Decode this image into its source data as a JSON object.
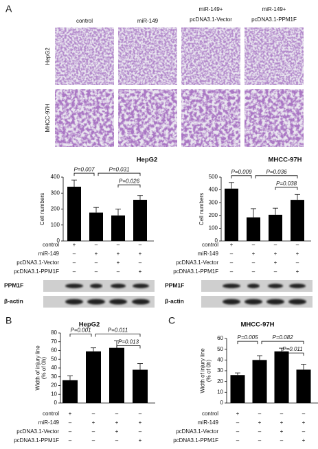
{
  "panel_a": {
    "label": "A",
    "columns": [
      [
        "control"
      ],
      [
        "miR-149"
      ],
      [
        "miR-149+",
        "pcDNA3.1-Vector"
      ],
      [
        "miR-149+",
        "pcDNA3.1-PPM1F"
      ]
    ],
    "rows": [
      "HepG2",
      "MHCC-97H"
    ]
  },
  "blots": [
    {
      "labels": [
        "PPM1F",
        "β-actin"
      ]
    },
    {
      "labels": [
        "PPM1F",
        "β-actin"
      ]
    }
  ],
  "chart_data": [
    {
      "type": "bar",
      "title": "HepG2",
      "y_label": "Cell numbers",
      "color": "#000000",
      "ylim": [
        0,
        400
      ],
      "yticks": [
        0,
        100,
        200,
        300,
        400
      ],
      "values": [
        340,
        178,
        160,
        258
      ],
      "errors": [
        42,
        32,
        40,
        27
      ],
      "annotations": [
        {
          "label": "P=0.007"
        },
        {
          "label": "P=0.031"
        },
        {
          "label": "P=0.026"
        }
      ],
      "conditions": [
        {
          "name": "control",
          "signs": [
            "+",
            "–",
            "–",
            "–"
          ]
        },
        {
          "name": "miR-149",
          "signs": [
            "–",
            "+",
            "+",
            "+"
          ]
        },
        {
          "name": "pcDNA3.1-Vector",
          "signs": [
            "–",
            "–",
            "+",
            "–"
          ]
        },
        {
          "name": "pcDNA3.1-PPM1F",
          "signs": [
            "–",
            "–",
            "–",
            "+"
          ]
        }
      ]
    },
    {
      "type": "bar",
      "title": "MHCC-97H",
      "y_label": "Cell numbers",
      "color": "#000000",
      "ylim": [
        0,
        500
      ],
      "yticks": [
        0,
        100,
        200,
        300,
        400,
        500
      ],
      "values": [
        410,
        185,
        205,
        322
      ],
      "errors": [
        48,
        68,
        52,
        42
      ],
      "annotations": [
        {
          "label": "P=0.009"
        },
        {
          "label": "P=0.036"
        },
        {
          "label": "P=0.038"
        }
      ],
      "conditions": [
        {
          "name": "control",
          "signs": [
            "+",
            "–",
            "–",
            "–"
          ]
        },
        {
          "name": "miR-149",
          "signs": [
            "–",
            "+",
            "+",
            "+"
          ]
        },
        {
          "name": "pcDNA3.1-Vector",
          "signs": [
            "–",
            "–",
            "+",
            "–"
          ]
        },
        {
          "name": "pcDNA3.1-PPM1F",
          "signs": [
            "–",
            "–",
            "–",
            "+"
          ]
        }
      ]
    },
    {
      "type": "bar",
      "panel": "B",
      "title": "HepG2",
      "y_label": [
        "Width of injury line",
        "(% of 0h)"
      ],
      "color": "#000000",
      "ylim": [
        0,
        80
      ],
      "yticks": [
        0,
        10,
        20,
        30,
        40,
        50,
        60,
        70,
        80
      ],
      "values": [
        26,
        59,
        63,
        38
      ],
      "errors": [
        5,
        4,
        8,
        7
      ],
      "annotations": [
        {
          "label": "P=0.001"
        },
        {
          "label": "P=0.011"
        },
        {
          "label": "P=0.013"
        }
      ],
      "conditions": [
        {
          "name": "control",
          "signs": [
            "+",
            "–",
            "–",
            "–"
          ]
        },
        {
          "name": "miR-149",
          "signs": [
            "–",
            "+",
            "+",
            "+"
          ]
        },
        {
          "name": "pcDNA3.1-Vector",
          "signs": [
            "–",
            "–",
            "+",
            "–"
          ]
        },
        {
          "name": "pcDNA3.1-PPM1F",
          "signs": [
            "–",
            "–",
            "–",
            "+"
          ]
        }
      ]
    },
    {
      "type": "bar",
      "panel": "C",
      "title": "MHCC-97H",
      "y_label": [
        "Width of injury line",
        "(% of 0h)"
      ],
      "color": "#000000",
      "ylim": [
        0,
        60
      ],
      "yticks": [
        0,
        10,
        20,
        30,
        40,
        50,
        60
      ],
      "values": [
        26,
        40,
        48,
        31
      ],
      "errors": [
        2,
        4,
        3,
        5
      ],
      "annotations": [
        {
          "label": "P=0.005"
        },
        {
          "label": "P=0.082"
        },
        {
          "label": "P=0.011"
        }
      ],
      "conditions": [
        {
          "name": "control",
          "signs": [
            "+",
            "–",
            "–",
            "–"
          ]
        },
        {
          "name": "miR-149",
          "signs": [
            "–",
            "+",
            "+",
            "+"
          ]
        },
        {
          "name": "pcDNA3.1-Vector",
          "signs": [
            "–",
            "–",
            "+",
            "–"
          ]
        },
        {
          "name": "pcDNA3.1-PPM1F",
          "signs": [
            "–",
            "–",
            "–",
            "+"
          ]
        }
      ]
    }
  ]
}
